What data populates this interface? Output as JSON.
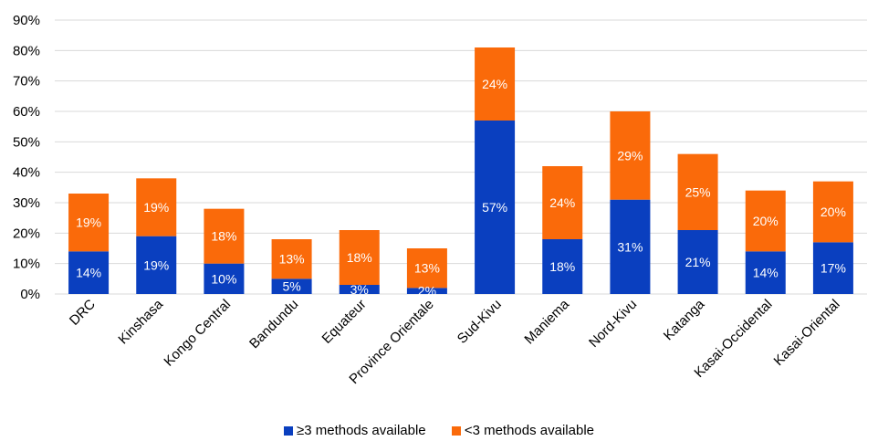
{
  "chart_data": {
    "type": "bar",
    "stacked": true,
    "categories": [
      "DRC",
      "Kinshasa",
      "Kongo Central",
      "Bandundu",
      "Equateur",
      "Province Orientale",
      "Sud-Kivu",
      "Maniema",
      "Nord-Kivu",
      "Katanga",
      "Kasai-Occidental",
      "Kasai-Oriental"
    ],
    "series": [
      {
        "name": "≥3 methods available",
        "color": "#0a3fbf",
        "values": [
          14,
          19,
          10,
          5,
          3,
          2,
          57,
          18,
          31,
          21,
          14,
          17
        ],
        "labels": [
          "14%",
          "19%",
          "10%",
          "5%",
          "3%",
          "2%",
          "57%",
          "18%",
          "31%",
          "21%",
          "14%",
          "17%"
        ]
      },
      {
        "name": "<3 methods available",
        "color": "#fa6a0a",
        "values": [
          19,
          19,
          18,
          13,
          18,
          13,
          24,
          24,
          29,
          25,
          20,
          20
        ],
        "labels": [
          "19%",
          "19%",
          "18%",
          "13%",
          "18%",
          "13%",
          "24%",
          "24%",
          "29%",
          "25%",
          "20%",
          "20%"
        ]
      }
    ],
    "ylim": [
      0,
      90
    ],
    "yticks": [
      "0%",
      "10%",
      "20%",
      "30%",
      "40%",
      "50%",
      "60%",
      "70%",
      "80%",
      "90%"
    ],
    "grid": true,
    "legend": "bottom"
  }
}
